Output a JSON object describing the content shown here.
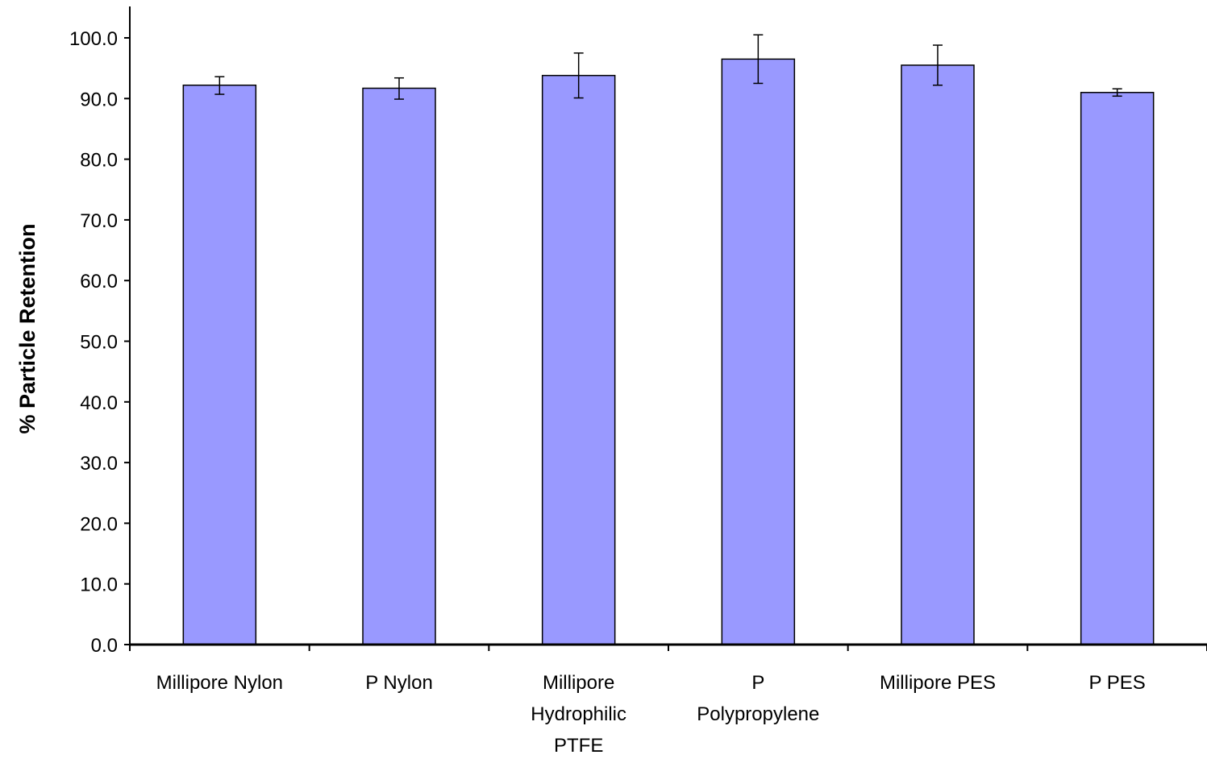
{
  "chart_data": {
    "type": "bar",
    "title": "",
    "xlabel": "",
    "ylabel": "% Particle Retention",
    "ylim": [
      0,
      100
    ],
    "yticks": [
      0,
      10,
      20,
      30,
      40,
      50,
      60,
      70,
      80,
      90,
      100
    ],
    "ytick_labels": [
      "0.0",
      "10.0",
      "20.0",
      "30.0",
      "40.0",
      "50.0",
      "60.0",
      "70.0",
      "80.0",
      "90.0",
      "100.0"
    ],
    "categories": [
      [
        "Millipore Nylon"
      ],
      [
        "P Nylon"
      ],
      [
        "Millipore",
        "Hydrophilic",
        "PTFE"
      ],
      [
        "P",
        "Polypropylene"
      ],
      [
        "Millipore PES"
      ],
      [
        "P PES"
      ]
    ],
    "values": [
      92.2,
      91.7,
      93.8,
      96.5,
      95.5,
      91.0
    ],
    "error_low": [
      90.7,
      89.9,
      90.1,
      92.5,
      92.2,
      90.4
    ],
    "error_high": [
      93.6,
      93.4,
      97.5,
      100.5,
      98.8,
      91.6
    ],
    "grid": false,
    "legend": "none",
    "colors": {
      "bar_fill": "#9999ff",
      "bar_stroke": "#000000",
      "axis": "#000000"
    }
  }
}
